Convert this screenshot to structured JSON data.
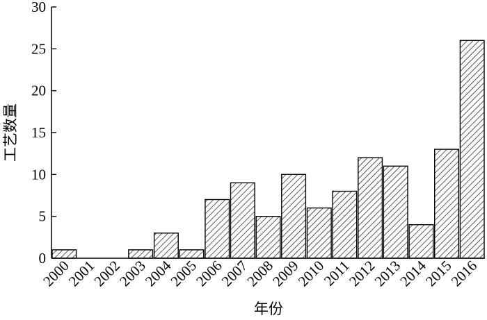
{
  "chart_data": {
    "type": "bar",
    "title": "",
    "xlabel": "年份",
    "ylabel": "工艺数量",
    "categories": [
      "2000",
      "2001",
      "2002",
      "2003",
      "2004",
      "2005",
      "2006",
      "2007",
      "2008",
      "2009",
      "2010",
      "2011",
      "2012",
      "2013",
      "2014",
      "2015",
      "2016"
    ],
    "values": [
      1,
      0,
      0,
      1,
      3,
      1,
      7,
      9,
      5,
      10,
      6,
      8,
      12,
      11,
      4,
      13,
      26
    ],
    "ylim": [
      0,
      30
    ],
    "yticks": [
      0,
      5,
      10,
      15,
      20,
      25,
      30
    ],
    "bar_fill": "diagonal-hatch",
    "grid": false
  }
}
